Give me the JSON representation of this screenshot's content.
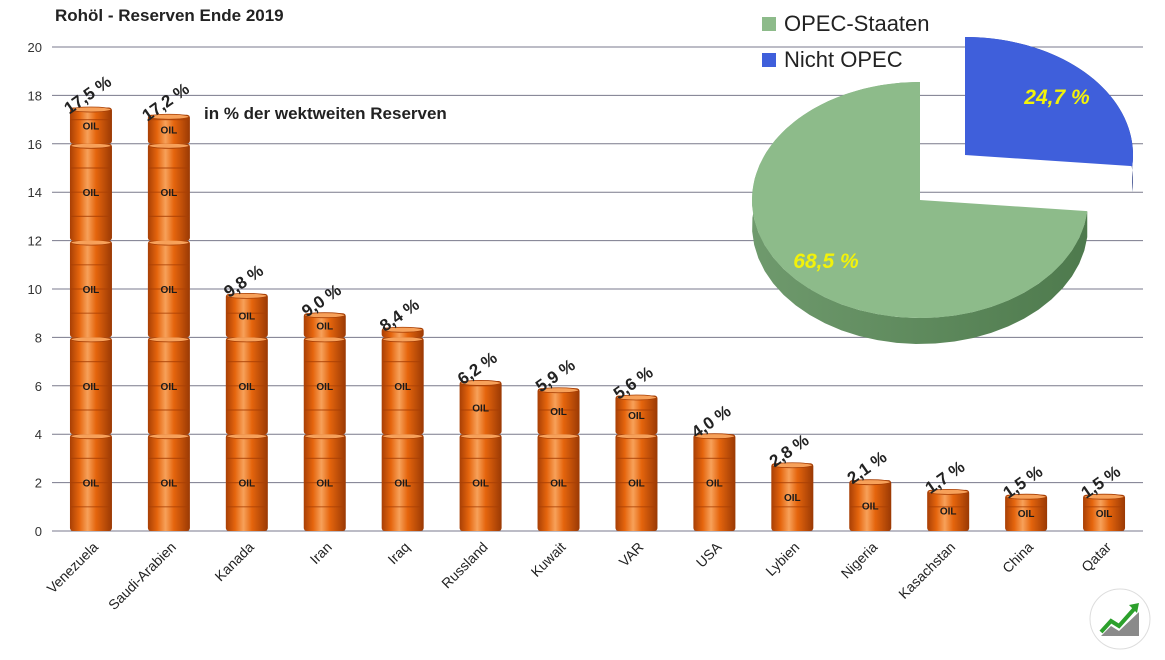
{
  "chart_data": [
    {
      "type": "bar",
      "title": "Rohöl - Reserven Ende 2019",
      "annotation": "in % der wektweiten Reserven",
      "categories": [
        "Venezuela",
        "Saudi-Arabien",
        "Kanada",
        "Iran",
        "Iraq",
        "Russland",
        "Kuwait",
        "VAR",
        "USA",
        "Lybien",
        "Nigeria",
        "Kasachstan",
        "China",
        "Qatar"
      ],
      "values": [
        17.5,
        17.2,
        9.8,
        9.0,
        8.4,
        6.2,
        5.9,
        5.6,
        4.0,
        2.8,
        2.1,
        1.7,
        1.5,
        1.5
      ],
      "value_labels": [
        "17,5 %",
        "17,2 %",
        "9,8 %",
        "9,0 %",
        "8,4 %",
        "6,2 %",
        "5,9 %",
        "5,6 %",
        "4,0 %",
        "2,8 %",
        "2,1 %",
        "1,7 %",
        "1,5 %",
        "1,5 %"
      ],
      "ylim": [
        0,
        20
      ],
      "yticks": [
        0,
        2,
        4,
        6,
        8,
        10,
        12,
        14,
        16,
        18,
        20
      ],
      "barrel_label": "OIL",
      "grid": true,
      "colors": {
        "barrel": "#e5650d",
        "barrel_dark": "#a83f05",
        "barrel_light": "#f7a15a",
        "grid": "#7a7a8c"
      }
    },
    {
      "type": "pie",
      "labels": [
        "OPEC-Staaten",
        "Nicht OPEC"
      ],
      "values": [
        68.5,
        24.7
      ],
      "value_labels": [
        "68,5 %",
        "24,7 %"
      ],
      "colors": [
        "#8dbb8a",
        "#3f5fdb"
      ],
      "label_color": "#f2f20a",
      "legend": "top-left"
    }
  ]
}
